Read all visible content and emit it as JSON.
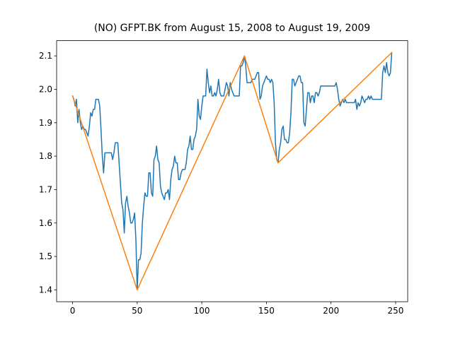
{
  "chart_data": {
    "type": "line",
    "title": "(NO) GFPT.BK from August 15, 2008 to August 19, 2009",
    "xlim": [
      -12.35,
      259.35
    ],
    "ylim": [
      1.3645,
      2.1455
    ],
    "xticks": [
      0,
      50,
      100,
      150,
      200,
      250
    ],
    "yticks": [
      1.4,
      1.5,
      1.6,
      1.7,
      1.8,
      1.9,
      {
        "value": 2,
        "label": "2.0"
      },
      2.1
    ],
    "series": [
      {
        "color": "#1f77b4",
        "x": [
          0,
          1,
          2,
          3,
          4,
          5,
          6,
          7,
          8,
          9,
          10,
          11,
          12,
          13,
          14,
          15,
          16,
          17,
          18,
          19,
          20,
          21,
          22,
          23,
          24,
          25,
          26,
          27,
          28,
          29,
          30,
          31,
          32,
          33,
          34,
          35,
          36,
          37,
          38,
          39,
          40,
          41,
          42,
          43,
          44,
          45,
          46,
          47,
          48,
          49,
          50,
          51,
          52,
          53,
          54,
          55,
          56,
          57,
          58,
          59,
          60,
          61,
          62,
          63,
          64,
          65,
          66,
          67,
          68,
          69,
          70,
          71,
          72,
          73,
          74,
          75,
          76,
          77,
          78,
          79,
          80,
          81,
          82,
          83,
          84,
          85,
          86,
          87,
          88,
          89,
          90,
          91,
          92,
          93,
          94,
          95,
          96,
          97,
          98,
          99,
          100,
          101,
          102,
          103,
          104,
          105,
          106,
          107,
          108,
          109,
          110,
          111,
          112,
          113,
          114,
          115,
          116,
          117,
          118,
          119,
          120,
          121,
          122,
          123,
          124,
          125,
          126,
          127,
          128,
          129,
          130,
          131,
          132,
          133,
          134,
          135,
          136,
          137,
          138,
          139,
          140,
          141,
          142,
          143,
          144,
          145,
          146,
          147,
          148,
          149,
          150,
          151,
          152,
          153,
          154,
          155,
          156,
          157,
          158,
          159,
          160,
          161,
          162,
          163,
          164,
          165,
          166,
          167,
          168,
          169,
          170,
          171,
          172,
          173,
          174,
          175,
          176,
          177,
          178,
          179,
          180,
          181,
          182,
          183,
          184,
          185,
          186,
          187,
          188,
          189,
          190,
          191,
          192,
          193,
          194,
          195,
          196,
          197,
          198,
          199,
          200,
          201,
          202,
          203,
          204,
          205,
          206,
          207,
          208,
          209,
          210,
          211,
          212,
          213,
          214,
          215,
          216,
          217,
          218,
          219,
          220,
          221,
          222,
          223,
          224,
          225,
          226,
          227,
          228,
          229,
          230,
          231,
          232,
          233,
          234,
          235,
          236,
          237,
          238,
          239,
          240,
          241,
          242,
          243,
          244,
          245,
          246,
          247
        ],
        "values": [
          1.98,
          1.97,
          1.95,
          1.97,
          1.9,
          1.94,
          1.9,
          1.88,
          1.89,
          1.88,
          1.88,
          1.87,
          1.86,
          1.89,
          1.93,
          1.92,
          1.94,
          1.94,
          1.97,
          1.97,
          1.97,
          1.95,
          1.88,
          1.8,
          1.75,
          1.81,
          1.81,
          1.81,
          1.81,
          1.81,
          1.81,
          1.79,
          1.81,
          1.84,
          1.84,
          1.84,
          1.78,
          1.72,
          1.66,
          1.64,
          1.57,
          1.66,
          1.68,
          1.65,
          1.63,
          1.6,
          1.6,
          1.61,
          1.63,
          1.55,
          1.4,
          1.49,
          1.49,
          1.51,
          1.6,
          1.65,
          1.69,
          1.68,
          1.68,
          1.75,
          1.75,
          1.69,
          1.68,
          1.79,
          1.8,
          1.83,
          1.79,
          1.78,
          1.71,
          1.69,
          1.68,
          1.67,
          1.69,
          1.69,
          1.7,
          1.67,
          1.73,
          1.76,
          1.77,
          1.8,
          1.78,
          1.78,
          1.73,
          1.73,
          1.75,
          1.76,
          1.76,
          1.76,
          1.78,
          1.82,
          1.83,
          1.86,
          1.82,
          1.82,
          1.85,
          1.86,
          1.88,
          1.97,
          1.92,
          1.91,
          1.95,
          1.98,
          1.98,
          1.98,
          2.06,
          2.02,
          1.99,
          2.01,
          1.98,
          1.98,
          1.99,
          1.98,
          2.0,
          2.03,
          1.99,
          1.98,
          1.98,
          1.98,
          2.0,
          2.02,
          2.01,
          1.98,
          2.02,
          2.0,
          1.99,
          1.98,
          1.98,
          1.98,
          1.98,
          1.98,
          2.07,
          2.07,
          2.08,
          2.1,
          2.07,
          2.02,
          2.02,
          2.02,
          2.02,
          2.03,
          2.03,
          2.03,
          2.04,
          2.05,
          2.05,
          1.97,
          1.98,
          2.01,
          2.02,
          2.03,
          2.04,
          2.03,
          2.03,
          2.02,
          2.03,
          2.02,
          1.96,
          1.84,
          1.79,
          1.78,
          1.82,
          1.84,
          1.88,
          1.89,
          1.85,
          1.85,
          1.84,
          1.84,
          1.87,
          1.93,
          2.03,
          2.03,
          2.01,
          2.02,
          2.03,
          2.04,
          2.04,
          2.02,
          2.02,
          1.9,
          1.89,
          1.94,
          1.99,
          1.99,
          1.96,
          1.98,
          1.98,
          1.96,
          1.99,
          1.99,
          1.98,
          1.99,
          2.01,
          2.01,
          2.01,
          2.01,
          2.01,
          2.01,
          2.01,
          2.01,
          2.01,
          2.01,
          2.01,
          2.01,
          2.02,
          2.0,
          1.97,
          1.95,
          1.96,
          1.97,
          1.96,
          1.97,
          1.96,
          1.96,
          1.96,
          1.96,
          1.96,
          1.96,
          1.96,
          1.97,
          1.94,
          1.96,
          1.95,
          1.96,
          1.98,
          1.97,
          1.96,
          1.97,
          1.97,
          1.98,
          1.97,
          1.98,
          1.97,
          1.97,
          1.97,
          1.97,
          1.97,
          1.97,
          1.97,
          1.97,
          2.05,
          2.07,
          2.05,
          2.08,
          2.05,
          2.04,
          2.05,
          2.11
        ]
      },
      {
        "color": "#ff7f0e",
        "x": [
          0,
          50,
          133,
          159,
          247
        ],
        "values": [
          1.98,
          1.4,
          2.1,
          1.78,
          2.11
        ]
      }
    ]
  }
}
